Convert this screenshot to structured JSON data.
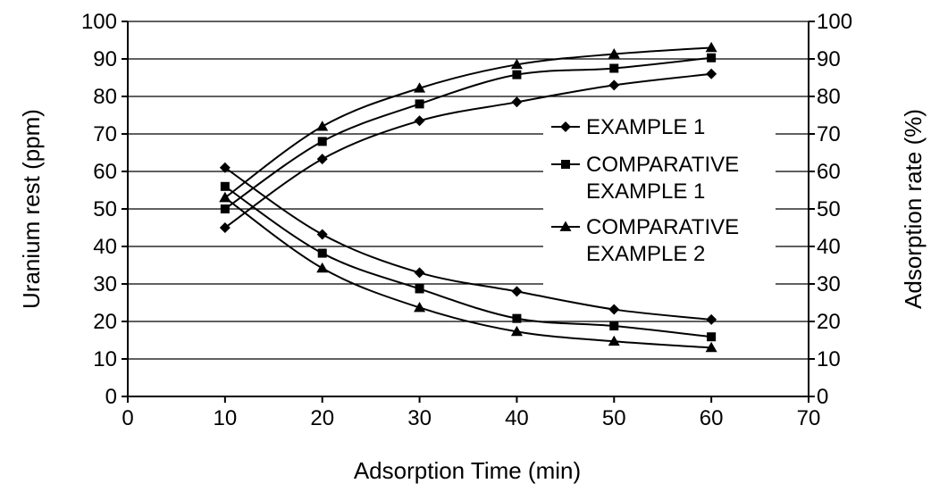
{
  "chart_data": {
    "type": "line",
    "title": "",
    "xlabel": "Adsorption Time (min)",
    "ylabel_left": "Uranium rest (ppm)",
    "ylabel_right": "Adsorption rate (%)",
    "xlim": [
      0,
      70
    ],
    "ylim_left": [
      0,
      100
    ],
    "ylim_right": [
      0,
      100
    ],
    "x_ticks": [
      0,
      10,
      20,
      30,
      40,
      50,
      60,
      70
    ],
    "y_ticks_left": [
      0,
      10,
      20,
      30,
      40,
      50,
      60,
      70,
      80,
      90,
      100
    ],
    "y_ticks_right": [
      0,
      10,
      20,
      30,
      40,
      50,
      60,
      70,
      80,
      90,
      100
    ],
    "grid": "horizontal",
    "legend_position": "right-center",
    "legend": [
      {
        "label_lines": [
          "EXAMPLE 1"
        ],
        "marker": "diamond"
      },
      {
        "label_lines": [
          "COMPARATIVE",
          "EXAMPLE 1"
        ],
        "marker": "square"
      },
      {
        "label_lines": [
          "COMPARATIVE",
          "EXAMPLE 2"
        ],
        "marker": "triangle"
      }
    ],
    "series": [
      {
        "name": "EXAMPLE 1",
        "axis": "left",
        "marker": "diamond",
        "x": [
          10,
          20,
          30,
          40,
          50,
          60
        ],
        "y": [
          61,
          43.2,
          33,
          28,
          23.2,
          20.5
        ]
      },
      {
        "name": "COMPARATIVE EXAMPLE 1",
        "axis": "left",
        "marker": "square",
        "x": [
          10,
          20,
          30,
          40,
          50,
          60
        ],
        "y": [
          56,
          38.2,
          28.7,
          20.8,
          18.8,
          15.9
        ]
      },
      {
        "name": "COMPARATIVE EXAMPLE 2",
        "axis": "left",
        "marker": "triangle",
        "x": [
          10,
          20,
          30,
          40,
          50,
          60
        ],
        "y": [
          53,
          34.2,
          23.7,
          17.3,
          14.7,
          13
        ]
      },
      {
        "name": "EXAMPLE 1",
        "axis": "right",
        "marker": "diamond",
        "x": [
          10,
          20,
          30,
          40,
          50,
          60
        ],
        "y": [
          45,
          63.3,
          73.5,
          78.5,
          83,
          86
        ]
      },
      {
        "name": "COMPARATIVE EXAMPLE 1",
        "axis": "right",
        "marker": "square",
        "x": [
          10,
          20,
          30,
          40,
          50,
          60
        ],
        "y": [
          50,
          68,
          78,
          85.8,
          87.5,
          90.3
        ]
      },
      {
        "name": "COMPARATIVE EXAMPLE 2",
        "axis": "right",
        "marker": "triangle",
        "x": [
          10,
          20,
          30,
          40,
          50,
          60
        ],
        "y": [
          53,
          72,
          82.2,
          88.5,
          91.3,
          93
        ]
      }
    ],
    "colors": {
      "line": "#000000",
      "grid": "#000000",
      "background": "#ffffff"
    }
  }
}
